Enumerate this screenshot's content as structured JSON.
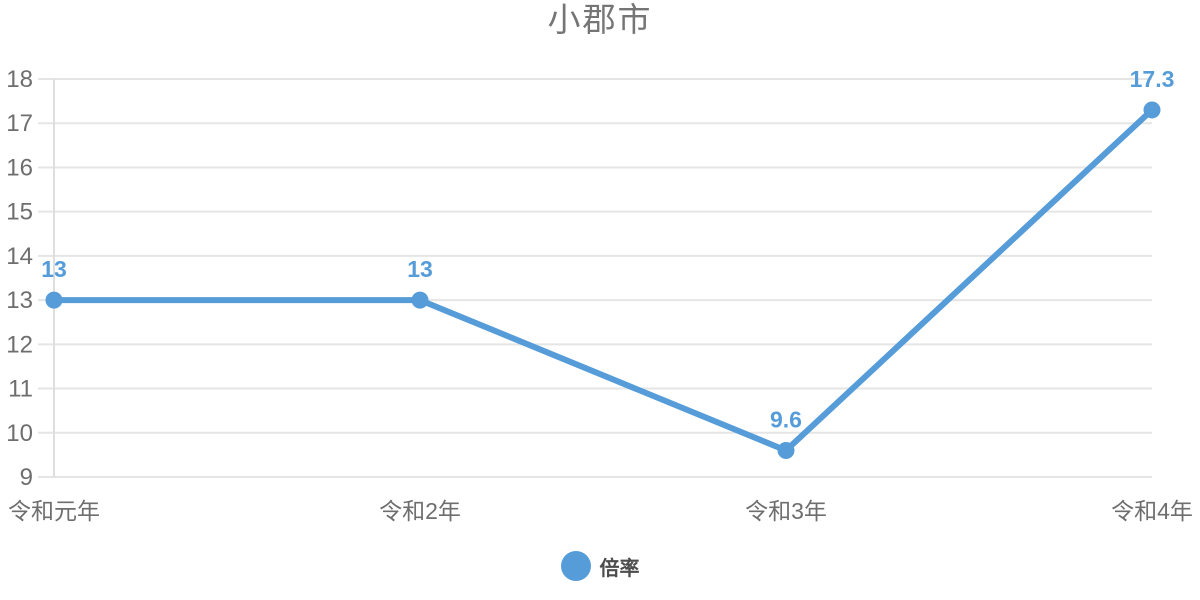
{
  "chart_data": {
    "type": "line",
    "title": "小郡市",
    "categories": [
      "令和元年",
      "令和2年",
      "令和3年",
      "令和4年"
    ],
    "series": [
      {
        "name": "倍率",
        "values": [
          13,
          13,
          9.6,
          17.3
        ],
        "point_labels": [
          "13",
          "13",
          "9.6",
          "17.3"
        ],
        "color": "#569cd8"
      }
    ],
    "xlabel": "",
    "ylabel": "",
    "ylim": [
      9,
      18
    ],
    "yticks": [
      9,
      10,
      11,
      12,
      13,
      14,
      15,
      16,
      17,
      18
    ],
    "grid": "horizontal-only",
    "legend_position": "bottom",
    "show_point_labels": true
  },
  "colors": {
    "accent": "#569cd8",
    "gridline": "#e5e5e5",
    "axis_line": "#dedede",
    "title_text": "#757575",
    "tick_text": "#6e6e6e",
    "legend_text": "#4c4c4c",
    "background": "#ffffff"
  }
}
